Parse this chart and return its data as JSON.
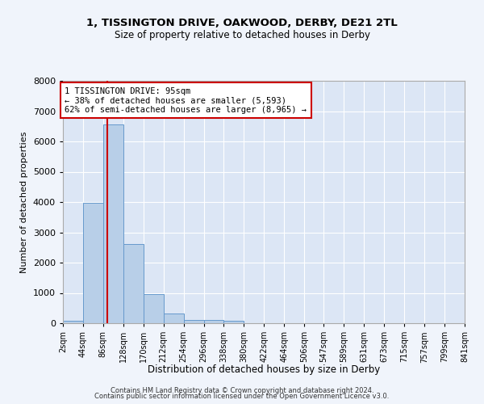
{
  "title1": "1, TISSINGTON DRIVE, OAKWOOD, DERBY, DE21 2TL",
  "title2": "Size of property relative to detached houses in Derby",
  "xlabel": "Distribution of detached houses by size in Derby",
  "ylabel": "Number of detached properties",
  "footnote1": "Contains HM Land Registry data © Crown copyright and database right 2024.",
  "footnote2": "Contains public sector information licensed under the Open Government Licence v3.0.",
  "bar_color": "#b8cfe8",
  "bar_edge_color": "#6699cc",
  "background_color": "#dce6f5",
  "fig_background_color": "#f0f4fb",
  "grid_color": "#ffffff",
  "bins": [
    2,
    44,
    86,
    128,
    170,
    212,
    254,
    296,
    338,
    380,
    422,
    464,
    506,
    547,
    589,
    631,
    673,
    715,
    757,
    799,
    841
  ],
  "counts": [
    75,
    3980,
    6570,
    2620,
    960,
    310,
    120,
    110,
    85,
    0,
    0,
    0,
    0,
    0,
    0,
    0,
    0,
    0,
    0,
    0
  ],
  "property_size": 95,
  "annotation_text": "1 TISSINGTON DRIVE: 95sqm\n← 38% of detached houses are smaller (5,593)\n62% of semi-detached houses are larger (8,965) →",
  "annotation_box_color": "#ffffff",
  "annotation_box_edge_color": "#cc0000",
  "red_line_color": "#cc0000",
  "ylim": [
    0,
    8000
  ],
  "yticks": [
    0,
    1000,
    2000,
    3000,
    4000,
    5000,
    6000,
    7000,
    8000
  ]
}
